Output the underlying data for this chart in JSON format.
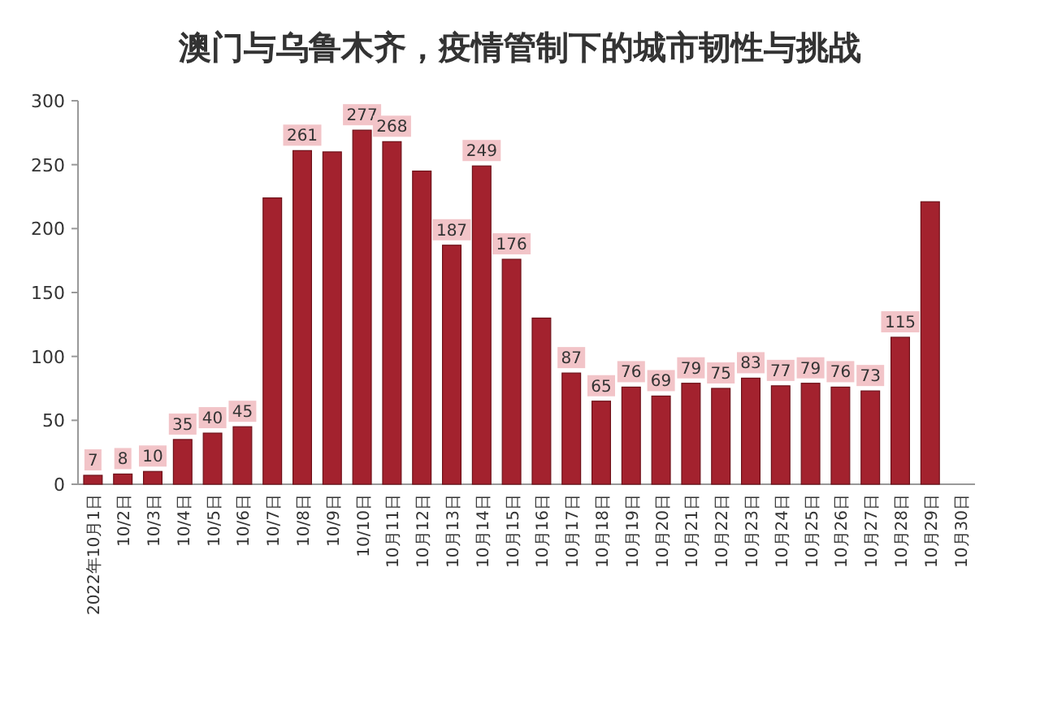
{
  "chart_data": {
    "type": "bar",
    "title": "澳门与乌鲁木齐，疫情管制下的城市韧性与挑战",
    "categories": [
      "2022年10月1日",
      "10/2日",
      "10/3日",
      "10/4日",
      "10/5日",
      "10/6日",
      "10/7日",
      "10/8日",
      "10/9日",
      "10/10日",
      "10月11日",
      "10月12日",
      "10月13日",
      "10月14日",
      "10月15日",
      "10月16日",
      "10月17日",
      "10月18日",
      "10月19日",
      "10月20日",
      "10月21日",
      "10月22日",
      "10月23日",
      "10月24日",
      "10月25日",
      "10月26日",
      "10月27日",
      "10月28日",
      "10月29日",
      "10月30日"
    ],
    "values": [
      7,
      8,
      10,
      35,
      40,
      45,
      224,
      261,
      260,
      277,
      268,
      245,
      187,
      249,
      176,
      130,
      87,
      65,
      76,
      69,
      79,
      75,
      83,
      77,
      79,
      76,
      73,
      115,
      221,
      null
    ],
    "value_labels": [
      "7",
      "8",
      "10",
      "35",
      "40",
      "45",
      null,
      "261",
      null,
      "277",
      "268",
      null,
      "187",
      "249",
      "176",
      null,
      "87",
      "65",
      "76",
      "69",
      "79",
      "75",
      "83",
      "77",
      "79",
      "76",
      "73",
      "115",
      null,
      null
    ],
    "color": "#a3222e",
    "ylim": [
      0,
      300
    ],
    "yticks": [
      0,
      50,
      100,
      150,
      200,
      250,
      300
    ],
    "grid": false
  }
}
